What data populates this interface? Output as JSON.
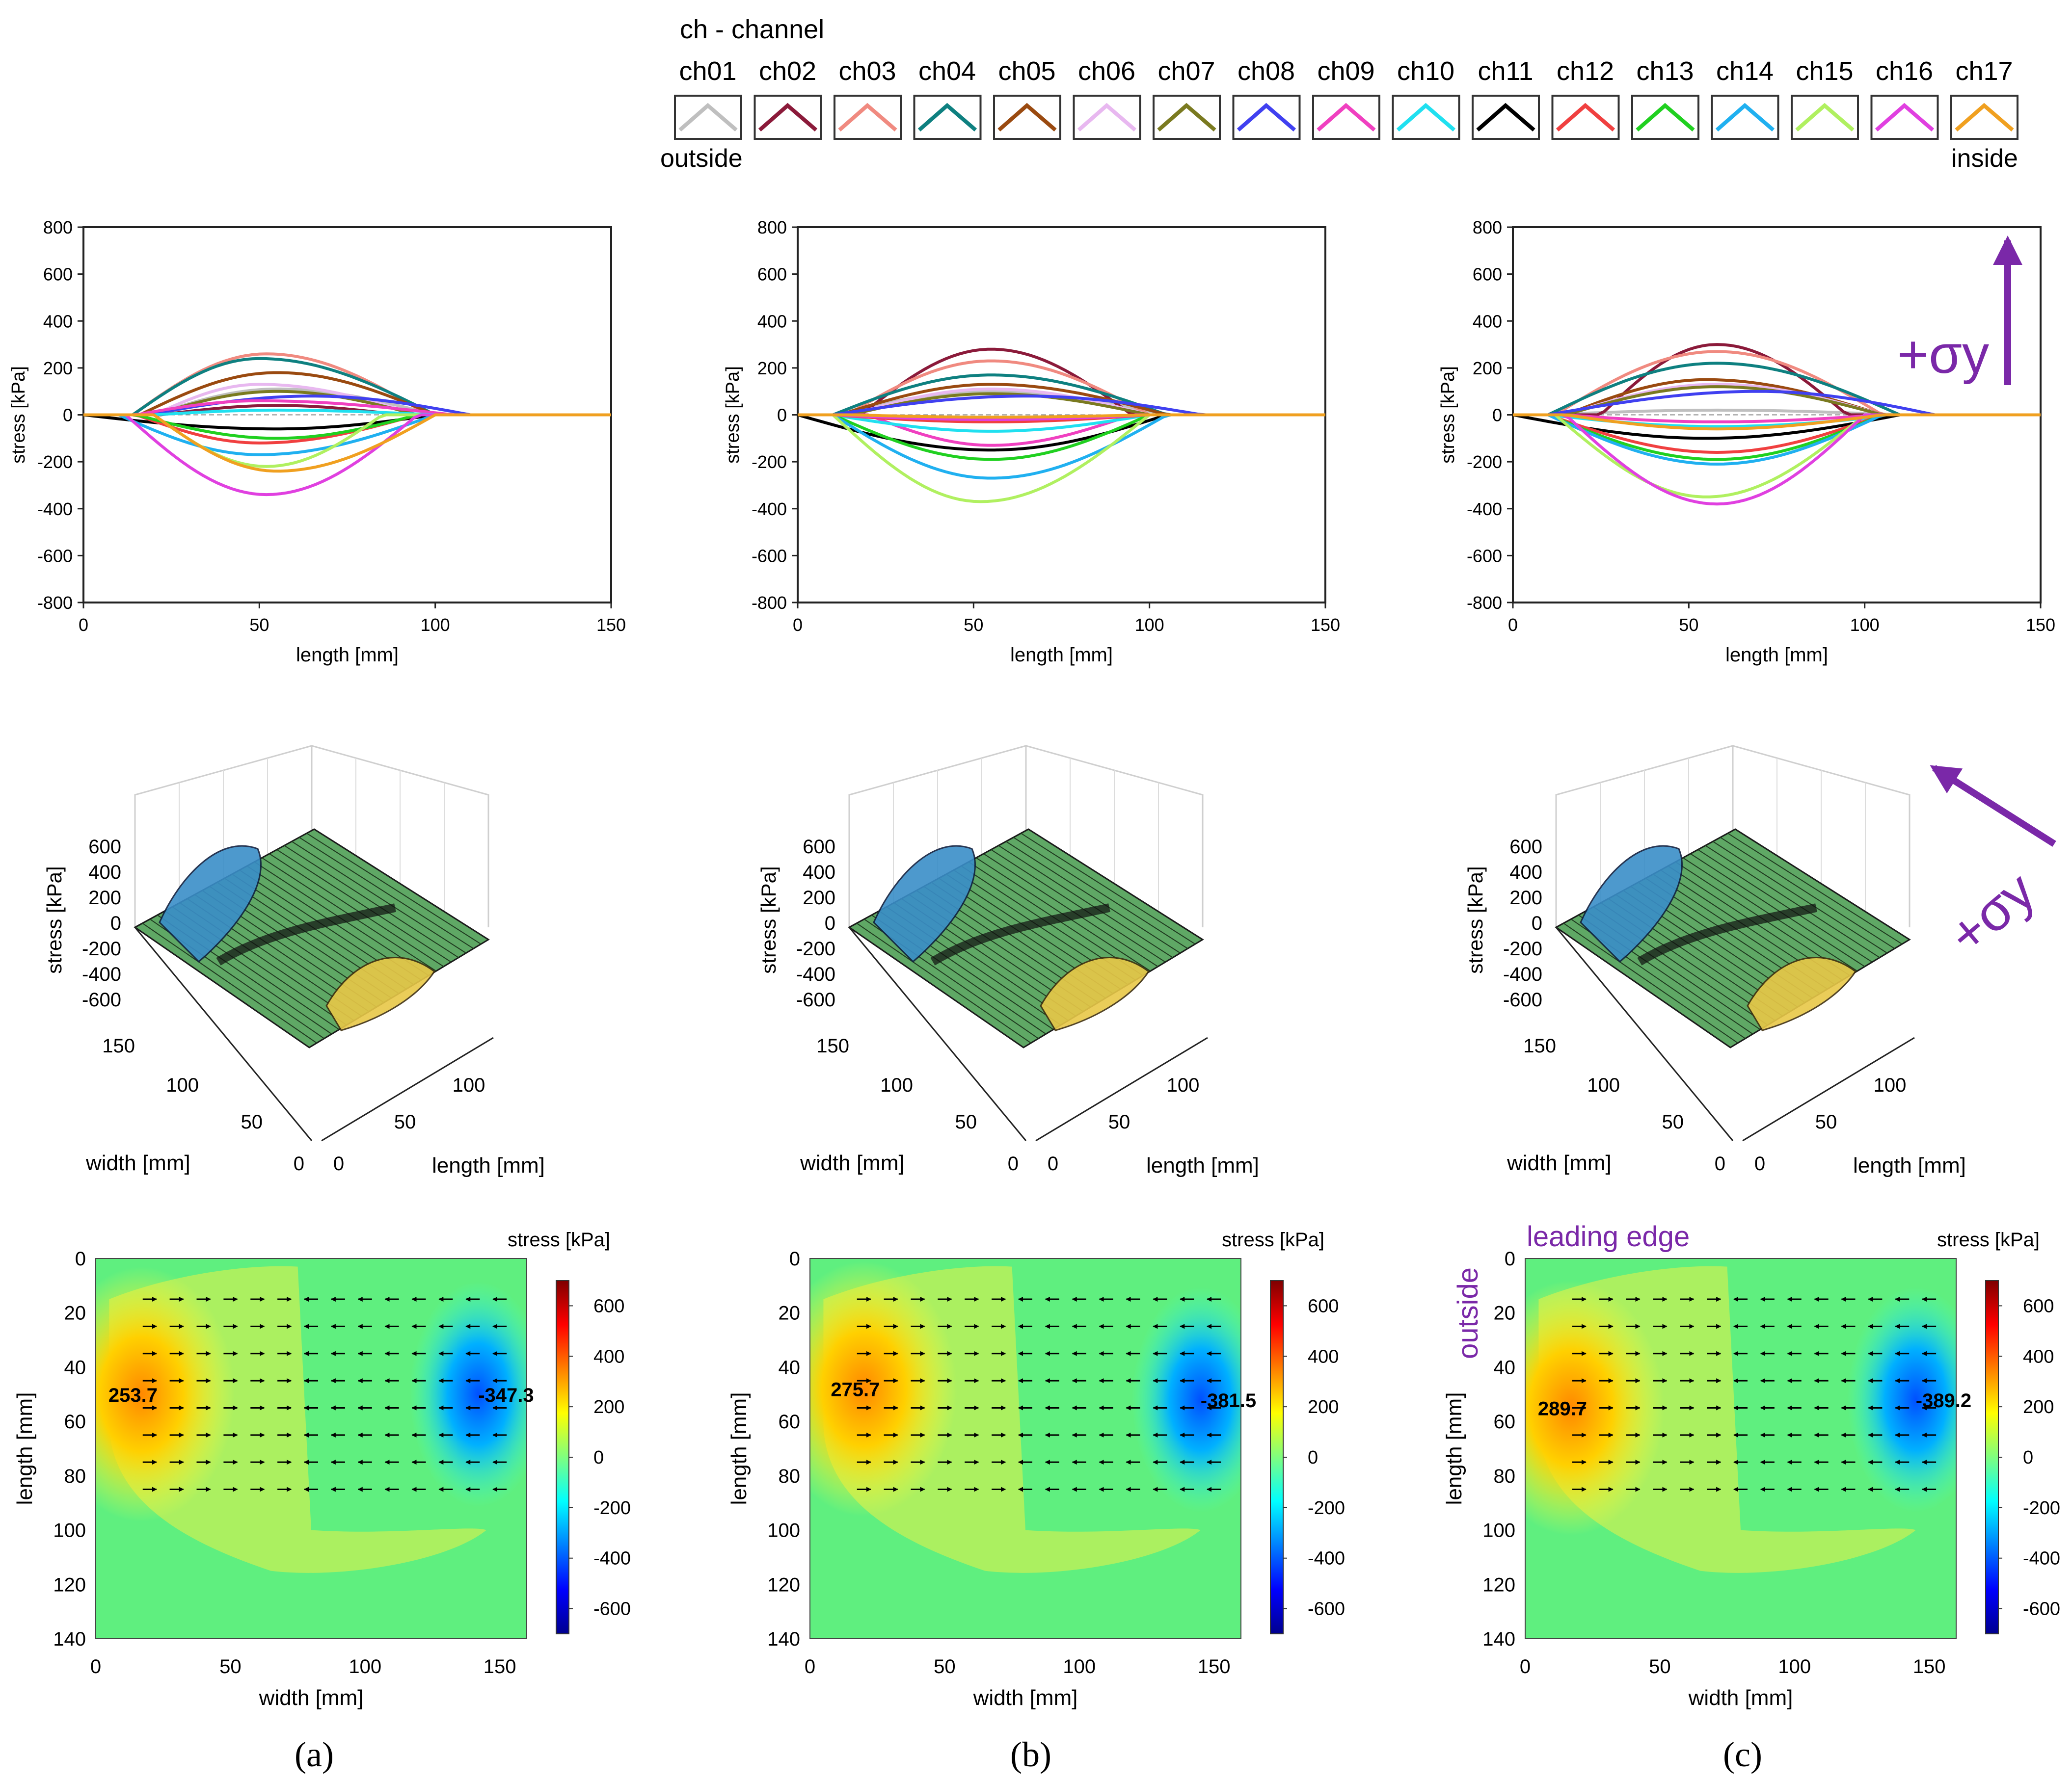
{
  "legend": {
    "title": "ch - channel",
    "outside_label": "outside",
    "inside_label": "inside",
    "channels": [
      {
        "name": "ch01",
        "color": "#bfbfbf"
      },
      {
        "name": "ch02",
        "color": "#8b1a3a"
      },
      {
        "name": "ch03",
        "color": "#f08a80"
      },
      {
        "name": "ch04",
        "color": "#0e8080"
      },
      {
        "name": "ch05",
        "color": "#9a4a10"
      },
      {
        "name": "ch06",
        "color": "#e8b8f0"
      },
      {
        "name": "ch07",
        "color": "#7a7a20"
      },
      {
        "name": "ch08",
        "color": "#4040f0"
      },
      {
        "name": "ch09",
        "color": "#f040c0"
      },
      {
        "name": "ch10",
        "color": "#20e0f0"
      },
      {
        "name": "ch11",
        "color": "#000000"
      },
      {
        "name": "ch12",
        "color": "#f04040"
      },
      {
        "name": "ch13",
        "color": "#20d020"
      },
      {
        "name": "ch14",
        "color": "#20b0f0"
      },
      {
        "name": "ch15",
        "color": "#b0f060"
      },
      {
        "name": "ch16",
        "color": "#e040e0"
      },
      {
        "name": "ch17",
        "color": "#f0a020"
      }
    ]
  },
  "annotations": {
    "sigma_label": "+σy",
    "leading_edge": "leading edge",
    "outside": "outside",
    "accent_color": "#7a28a8"
  },
  "panel_labels": [
    "(a)",
    "(b)",
    "(c)"
  ],
  "chart_data": [
    {
      "type": "line",
      "panel": "a",
      "xlabel": "length [mm]",
      "ylabel": "stress [kPa]",
      "xlim": [
        0,
        150
      ],
      "ylim": [
        -800,
        800
      ],
      "xticks": [
        0,
        50,
        100,
        150
      ],
      "yticks": [
        -800,
        -600,
        -400,
        -200,
        0,
        200,
        400,
        600,
        800
      ],
      "grid": false,
      "series": [
        {
          "name": "ch01",
          "x0": 20,
          "x1": 100,
          "peak": 110,
          "center": 55
        },
        {
          "name": "ch02",
          "x0": 22,
          "x1": 90,
          "peak": 40,
          "center": 55
        },
        {
          "name": "ch03",
          "x0": 14,
          "x1": 98,
          "peak": 260,
          "center": 52
        },
        {
          "name": "ch04",
          "x0": 14,
          "x1": 100,
          "peak": 240,
          "center": 50
        },
        {
          "name": "ch05",
          "x0": 16,
          "x1": 100,
          "peak": 180,
          "center": 55
        },
        {
          "name": "ch06",
          "x0": 20,
          "x1": 95,
          "peak": 130,
          "center": 50
        },
        {
          "name": "ch07",
          "x0": 20,
          "x1": 95,
          "peak": 100,
          "center": 55
        },
        {
          "name": "ch08",
          "x0": 18,
          "x1": 110,
          "peak": 80,
          "center": 65
        },
        {
          "name": "ch09",
          "x0": 15,
          "x1": 105,
          "peak": 60,
          "center": 50
        },
        {
          "name": "ch10",
          "x0": 20,
          "x1": 100,
          "peak": 20,
          "center": 55
        },
        {
          "name": "ch11",
          "x0": 0,
          "x1": 100,
          "peak": -60,
          "center": 55
        },
        {
          "name": "ch12",
          "x0": 15,
          "x1": 95,
          "peak": -120,
          "center": 50
        },
        {
          "name": "ch13",
          "x0": 15,
          "x1": 95,
          "peak": -100,
          "center": 55
        },
        {
          "name": "ch14",
          "x0": 10,
          "x1": 100,
          "peak": -170,
          "center": 50
        },
        {
          "name": "ch15",
          "x0": 20,
          "x1": 85,
          "peak": -220,
          "center": 52
        },
        {
          "name": "ch16",
          "x0": 12,
          "x1": 95,
          "peak": -340,
          "center": 52
        },
        {
          "name": "ch17",
          "x0": 20,
          "x1": 100,
          "peak": -240,
          "center": 55
        }
      ]
    },
    {
      "type": "line",
      "panel": "b",
      "xlabel": "length [mm]",
      "ylabel": "stress [kPa]",
      "xlim": [
        0,
        150
      ],
      "ylim": [
        -800,
        800
      ],
      "xticks": [
        0,
        50,
        100,
        150
      ],
      "yticks": [
        -800,
        -600,
        -400,
        -200,
        0,
        200,
        400,
        600,
        800
      ],
      "grid": false,
      "series": [
        {
          "name": "ch01",
          "x0": 10,
          "x1": 105,
          "peak": 100,
          "center": 55
        },
        {
          "name": "ch02",
          "x0": 18,
          "x1": 95,
          "peak": 280,
          "center": 55
        },
        {
          "name": "ch03",
          "x0": 14,
          "x1": 100,
          "peak": 230,
          "center": 55
        },
        {
          "name": "ch04",
          "x0": 10,
          "x1": 105,
          "peak": 170,
          "center": 55
        },
        {
          "name": "ch05",
          "x0": 12,
          "x1": 105,
          "peak": 130,
          "center": 55
        },
        {
          "name": "ch06",
          "x0": 15,
          "x1": 100,
          "peak": 110,
          "center": 55
        },
        {
          "name": "ch07",
          "x0": 15,
          "x1": 100,
          "peak": 90,
          "center": 55
        },
        {
          "name": "ch08",
          "x0": 10,
          "x1": 115,
          "peak": 80,
          "center": 65
        },
        {
          "name": "ch09",
          "x0": 20,
          "x1": 95,
          "peak": -130,
          "center": 55
        },
        {
          "name": "ch10",
          "x0": 10,
          "x1": 100,
          "peak": -70,
          "center": 55
        },
        {
          "name": "ch11",
          "x0": 0,
          "x1": 105,
          "peak": -150,
          "center": 55
        },
        {
          "name": "ch12",
          "x0": 10,
          "x1": 100,
          "peak": -30,
          "center": 55
        },
        {
          "name": "ch13",
          "x0": 10,
          "x1": 100,
          "peak": -190,
          "center": 55
        },
        {
          "name": "ch14",
          "x0": 10,
          "x1": 105,
          "peak": -270,
          "center": 55
        },
        {
          "name": "ch15",
          "x0": 10,
          "x1": 100,
          "peak": -370,
          "center": 52
        },
        {
          "name": "ch16",
          "x0": 10,
          "x1": 100,
          "peak": -20,
          "center": 55
        },
        {
          "name": "ch17",
          "x0": 15,
          "x1": 100,
          "peak": -10,
          "center": 55
        }
      ]
    },
    {
      "type": "line",
      "panel": "c",
      "xlabel": "length [mm]",
      "ylabel": "stress [kPa]",
      "xlim": [
        0,
        150
      ],
      "ylim": [
        -800,
        800
      ],
      "xticks": [
        0,
        50,
        100,
        150
      ],
      "yticks": [
        -800,
        -600,
        -400,
        -200,
        0,
        200,
        400,
        600,
        800
      ],
      "grid": false,
      "series": [
        {
          "name": "ch01",
          "x0": 10,
          "x1": 110,
          "peak": 20,
          "center": 58
        },
        {
          "name": "ch02",
          "x0": 25,
          "x1": 95,
          "peak": 300,
          "center": 58
        },
        {
          "name": "ch03",
          "x0": 12,
          "x1": 105,
          "peak": 270,
          "center": 58
        },
        {
          "name": "ch04",
          "x0": 10,
          "x1": 110,
          "peak": 220,
          "center": 58
        },
        {
          "name": "ch05",
          "x0": 15,
          "x1": 105,
          "peak": 150,
          "center": 55
        },
        {
          "name": "ch06",
          "x0": 15,
          "x1": 105,
          "peak": 130,
          "center": 58
        },
        {
          "name": "ch07",
          "x0": 15,
          "x1": 105,
          "peak": 120,
          "center": 58
        },
        {
          "name": "ch08",
          "x0": 10,
          "x1": 120,
          "peak": 100,
          "center": 70
        },
        {
          "name": "ch09",
          "x0": 15,
          "x1": 105,
          "peak": -30,
          "center": 58
        },
        {
          "name": "ch10",
          "x0": 10,
          "x1": 110,
          "peak": -50,
          "center": 58
        },
        {
          "name": "ch11",
          "x0": 0,
          "x1": 110,
          "peak": -100,
          "center": 55
        },
        {
          "name": "ch12",
          "x0": 10,
          "x1": 105,
          "peak": -160,
          "center": 58
        },
        {
          "name": "ch13",
          "x0": 10,
          "x1": 105,
          "peak": -190,
          "center": 58
        },
        {
          "name": "ch14",
          "x0": 10,
          "x1": 105,
          "peak": -210,
          "center": 58
        },
        {
          "name": "ch15",
          "x0": 12,
          "x1": 100,
          "peak": -350,
          "center": 55
        },
        {
          "name": "ch16",
          "x0": 15,
          "x1": 100,
          "peak": -380,
          "center": 58
        },
        {
          "name": "ch17",
          "x0": 15,
          "x1": 105,
          "peak": -60,
          "center": 58
        }
      ]
    },
    {
      "type": "surface",
      "panel": "a",
      "zlabel": "stress [kPa]",
      "xlabel": "width [mm]",
      "ylabel": "length [mm]",
      "zticks": [
        600,
        400,
        200,
        0,
        -200,
        -400,
        -600
      ],
      "xticks": [
        150,
        100,
        50,
        0
      ],
      "yticks": [
        0,
        50,
        100
      ]
    },
    {
      "type": "surface",
      "panel": "b",
      "zlabel": "stress [kPa]",
      "xlabel": "width [mm]",
      "ylabel": "length [mm]",
      "zticks": [
        600,
        400,
        200,
        0,
        -200,
        -400,
        -600
      ],
      "xticks": [
        150,
        100,
        50,
        0
      ],
      "yticks": [
        0,
        50,
        100
      ]
    },
    {
      "type": "surface",
      "panel": "c",
      "zlabel": "stress [kPa]",
      "xlabel": "width [mm]",
      "ylabel": "length [mm]",
      "zticks": [
        600,
        400,
        200,
        0,
        -200,
        -400,
        -600
      ],
      "xticks": [
        150,
        100,
        50,
        0
      ],
      "yticks": [
        0,
        50,
        100
      ]
    },
    {
      "type": "heatmap",
      "panel": "a",
      "xlabel": "width [mm]",
      "ylabel": "length [mm]",
      "colorbar_label": "stress [kPa]",
      "xlim": [
        0,
        160
      ],
      "ylim": [
        0,
        140
      ],
      "xticks": [
        0,
        50,
        100,
        150
      ],
      "yticks": [
        0,
        20,
        40,
        60,
        80,
        100,
        120,
        140
      ],
      "colorbar_ticks": [
        600,
        400,
        200,
        0,
        -200,
        -400,
        -600
      ],
      "clim": [
        -700,
        700
      ],
      "max_label": "253.7",
      "min_label": "-347.3",
      "max_value": 253.7,
      "min_value": -347.3,
      "max_at": [
        12,
        50
      ],
      "min_at": [
        142,
        50
      ]
    },
    {
      "type": "heatmap",
      "panel": "b",
      "xlabel": "width [mm]",
      "ylabel": "length [mm]",
      "colorbar_label": "stress [kPa]",
      "xlim": [
        0,
        160
      ],
      "ylim": [
        0,
        140
      ],
      "xticks": [
        0,
        50,
        100,
        150
      ],
      "yticks": [
        0,
        20,
        40,
        60,
        80,
        100,
        120,
        140
      ],
      "colorbar_ticks": [
        600,
        400,
        200,
        0,
        -200,
        -400,
        -600
      ],
      "clim": [
        -700,
        700
      ],
      "max_label": "275.7",
      "min_label": "-381.5",
      "max_value": 275.7,
      "min_value": -381.5,
      "max_at": [
        15,
        48
      ],
      "min_at": [
        145,
        52
      ]
    },
    {
      "type": "heatmap",
      "panel": "c",
      "xlabel": "width [mm]",
      "ylabel": "length [mm]",
      "colorbar_label": "stress [kPa]",
      "xlim": [
        0,
        160
      ],
      "ylim": [
        0,
        140
      ],
      "xticks": [
        0,
        50,
        100,
        150
      ],
      "yticks": [
        0,
        20,
        40,
        60,
        80,
        100,
        120,
        140
      ],
      "colorbar_ticks": [
        600,
        400,
        200,
        0,
        -200,
        -400,
        -600
      ],
      "clim": [
        -700,
        700
      ],
      "max_label": "289.7",
      "min_label": "-389.2",
      "max_value": 289.7,
      "min_value": -389.2,
      "max_at": [
        12,
        55
      ],
      "min_at": [
        145,
        52
      ]
    }
  ]
}
